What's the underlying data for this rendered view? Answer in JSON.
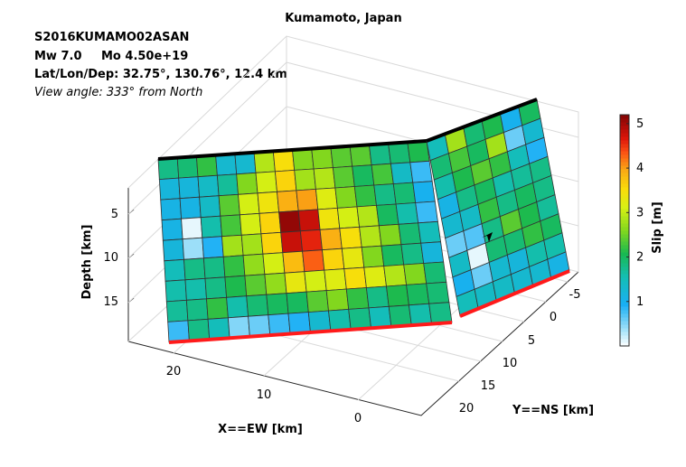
{
  "chart_data": {
    "type": "heatmap",
    "title": "Kumamoto, Japan",
    "info": {
      "event_id": "S2016KUMAMO02ASAN",
      "magnitude": "Mw 7.0",
      "moment": "Mo 4.50e+19",
      "location": "Lat/Lon/Dep: 32.75°, 130.76°, 12.4 km",
      "view_angle": "View angle: 333° from North"
    },
    "xlabel": "X==EW [km]",
    "ylabel": "Y==NS [km]",
    "zlabel": "Depth [km]",
    "x_ticks": [
      "20",
      "10",
      "0"
    ],
    "y_ticks": [
      "-5",
      "0",
      "5",
      "10",
      "15",
      "20"
    ],
    "z_ticks": [
      "5",
      "10",
      "15"
    ],
    "colorbar": {
      "label": "Slip [m]",
      "ticks": [
        "1",
        "2",
        "3",
        "4",
        "5"
      ],
      "range": [
        0,
        5.2
      ]
    },
    "segments": [
      {
        "name": "",
        "rows": 9,
        "cols": 14,
        "slip": [
          [
            1.8,
            1.9,
            2.2,
            1.3,
            1.3,
            2.9,
            3.5,
            2.6,
            2.6,
            2.4,
            2.4,
            1.8,
            1.9,
            2.1
          ],
          [
            1.2,
            1.2,
            1.4,
            1.7,
            2.6,
            3.1,
            3.6,
            2.8,
            2.9,
            2.4,
            2.0,
            2.3,
            1.4,
            0.8
          ],
          [
            1.1,
            1.1,
            1.4,
            2.4,
            3.1,
            3.4,
            3.9,
            4.0,
            3.2,
            2.6,
            2.2,
            1.8,
            1.9,
            1.0
          ],
          [
            1.1,
            0.1,
            1.6,
            2.3,
            3.1,
            3.6,
            5.1,
            4.8,
            3.4,
            3.1,
            2.9,
            2.0,
            1.6,
            0.8
          ],
          [
            1.2,
            0.4,
            0.9,
            2.8,
            2.8,
            3.6,
            4.8,
            4.6,
            3.9,
            3.5,
            2.9,
            2.6,
            1.9,
            1.5
          ],
          [
            1.5,
            1.8,
            1.8,
            2.2,
            2.7,
            3.1,
            3.8,
            4.3,
            3.6,
            3.3,
            2.6,
            2.0,
            1.8,
            1.2
          ],
          [
            1.6,
            1.6,
            1.8,
            2.1,
            2.4,
            2.7,
            3.3,
            3.1,
            3.2,
            3.5,
            3.2,
            2.9,
            2.6,
            1.9
          ],
          [
            1.7,
            1.8,
            2.2,
            1.6,
            1.9,
            2.0,
            2.0,
            2.4,
            2.6,
            2.2,
            1.8,
            2.1,
            2.0,
            1.9
          ],
          [
            0.8,
            1.8,
            1.5,
            0.5,
            0.6,
            0.8,
            0.9,
            1.3,
            1.6,
            1.8,
            1.5,
            1.9,
            1.6,
            1.8
          ]
        ]
      },
      {
        "name": "",
        "rows": 9,
        "cols": 6,
        "slip": [
          [
            1.5,
            2.8,
            1.9,
            2.1,
            1.0,
            2.0
          ],
          [
            1.9,
            2.3,
            2.0,
            2.8,
            0.6,
            1.3
          ],
          [
            1.6,
            2.1,
            2.4,
            2.2,
            1.5,
            0.9
          ],
          [
            1.1,
            1.8,
            2.0,
            1.6,
            1.7,
            1.8
          ],
          [
            1.3,
            1.4,
            2.2,
            1.8,
            2.0,
            1.8
          ],
          [
            0.6,
            0.7,
            1.8,
            2.4,
            2.1,
            1.7
          ],
          [
            1.4,
            0.1,
            1.9,
            1.9,
            2.2,
            2.0
          ],
          [
            1.0,
            0.6,
            1.3,
            1.2,
            1.6,
            1.6
          ],
          [
            1.5,
            1.4,
            1.4,
            1.3,
            1.3,
            1.1
          ]
        ]
      }
    ],
    "grid": true,
    "legend": "none"
  }
}
